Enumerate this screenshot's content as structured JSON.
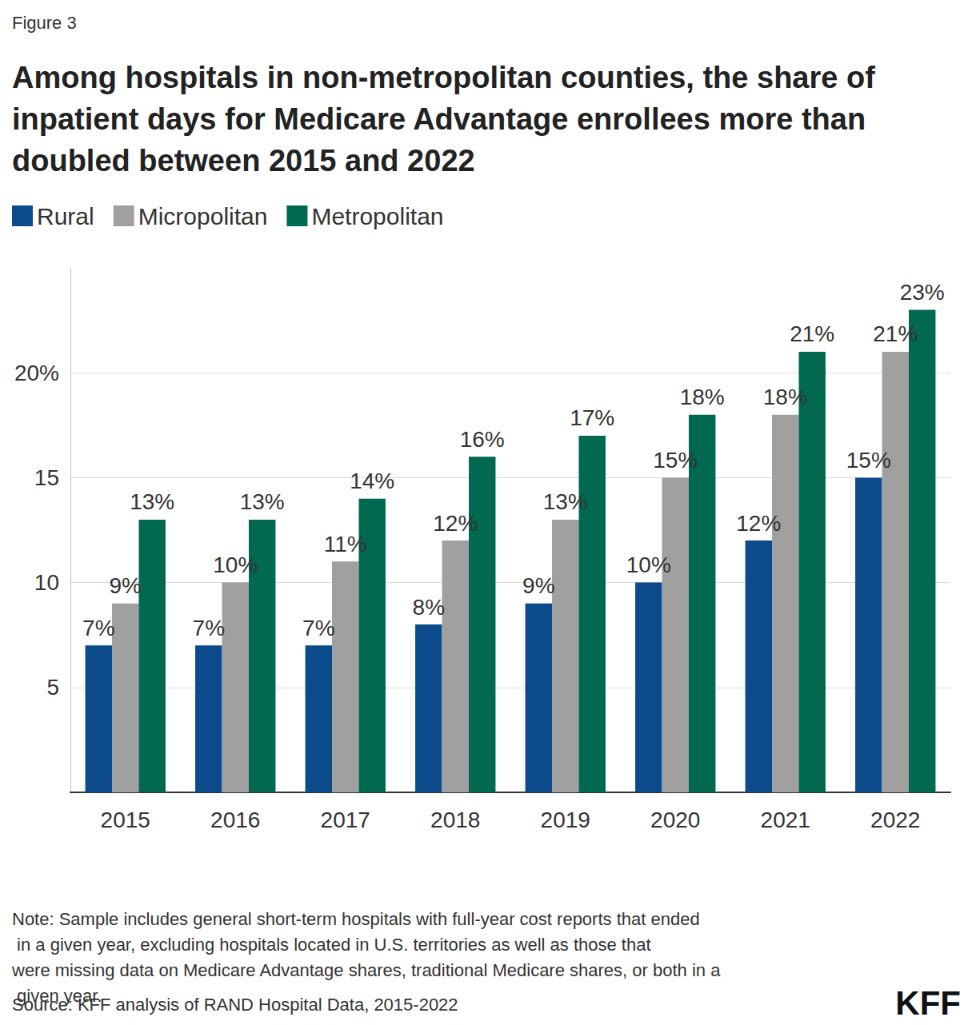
{
  "chart_data": {
    "type": "bar",
    "figure_label": "Figure 3",
    "title": "Among hospitals in non-metropolitan counties, the share of inpatient days for Medicare Advantage enrollees more than doubled between 2015 and 2022",
    "categories": [
      "2015",
      "2016",
      "2017",
      "2018",
      "2019",
      "2020",
      "2021",
      "2022"
    ],
    "series": [
      {
        "name": "Rural",
        "color": "#0b4a8b",
        "values": [
          7,
          7,
          7,
          8,
          9,
          10,
          12,
          15
        ],
        "value_labels": [
          "7%",
          "7%",
          "7%",
          "8%",
          "9%",
          "10%",
          "12%",
          "15%"
        ]
      },
      {
        "name": "Micropolitan",
        "color": "#a0a0a0",
        "values": [
          9,
          10,
          11,
          12,
          13,
          15,
          18,
          21
        ],
        "value_labels": [
          "9%",
          "10%",
          "11%",
          "12%",
          "13%",
          "15%",
          "18%",
          "21%"
        ]
      },
      {
        "name": "Metropolitan",
        "color": "#00694f",
        "values": [
          13,
          13,
          14,
          16,
          17,
          18,
          21,
          23
        ],
        "value_labels": [
          "13%",
          "13%",
          "14%",
          "16%",
          "17%",
          "18%",
          "21%",
          "23%"
        ]
      }
    ],
    "ylim": [
      0,
      25
    ],
    "yticks": [
      5,
      10,
      15,
      {
        "value": 20,
        "label": "20%"
      }
    ],
    "grid": true,
    "legend": "top-left",
    "data_labels": true,
    "note": "Note: Sample includes general short-term hospitals with full-year cost reports that ended in a given year, excluding hospitals located in U.S. territories as well as those that were missing data on Medicare Advantage shares, traditional Medicare shares, or both in a given year.",
    "source": "Source: KFF analysis of RAND Hospital Data, 2015-2022",
    "brand": "KFF"
  }
}
